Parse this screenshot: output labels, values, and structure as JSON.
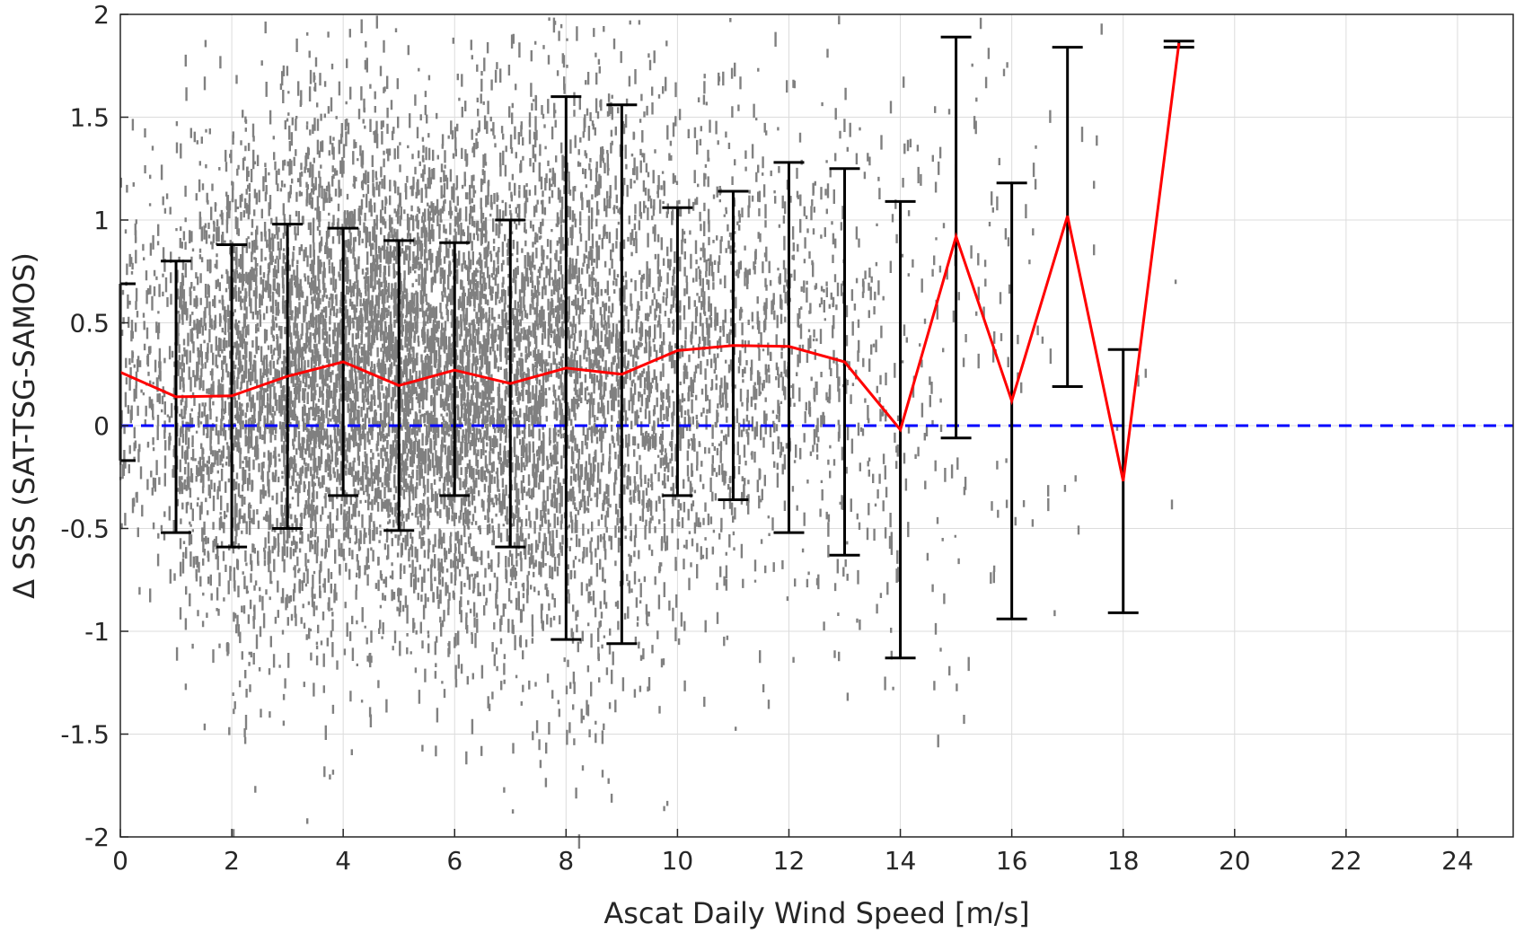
{
  "chart_data": {
    "type": "scatter",
    "xlabel": "Ascat Daily Wind Speed [m/s]",
    "ylabel": "Δ SSS (SAT-TSG-SAMOS)",
    "xlim": [
      0,
      25
    ],
    "ylim": [
      -2,
      2
    ],
    "x_ticks": [
      0,
      2,
      4,
      6,
      8,
      10,
      12,
      14,
      16,
      18,
      20,
      22,
      24
    ],
    "y_ticks": [
      -2,
      -1.5,
      -1,
      -0.5,
      0,
      0.5,
      1,
      1.5,
      2
    ],
    "x_tick_labels": [
      "0",
      "2",
      "4",
      "6",
      "8",
      "10",
      "12",
      "14",
      "16",
      "18",
      "20",
      "22",
      "24"
    ],
    "y_tick_labels": [
      "-2",
      "-1.5",
      "-1",
      "-0.5",
      "0",
      "0.5",
      "1",
      "1.5",
      "2"
    ],
    "grid": true,
    "colors": {
      "scatter": "#808080",
      "mean_line": "#ff0000",
      "zero_line": "#0000ff",
      "error_bars": "#000000"
    },
    "zero_line": 0,
    "mean_line": {
      "x": [
        0,
        1,
        2,
        3,
        4,
        5,
        6,
        7,
        8,
        9,
        10,
        11,
        12,
        13,
        14,
        15,
        16,
        17,
        18,
        19
      ],
      "y": [
        0.26,
        0.14,
        0.145,
        0.24,
        0.31,
        0.195,
        0.27,
        0.205,
        0.28,
        0.25,
        0.365,
        0.39,
        0.385,
        0.31,
        -0.02,
        0.92,
        0.12,
        1.02,
        -0.27,
        1.86
      ]
    },
    "error_bars": [
      {
        "x": 0,
        "low": -0.17,
        "high": 0.69
      },
      {
        "x": 1,
        "low": -0.52,
        "high": 0.8
      },
      {
        "x": 2,
        "low": -0.59,
        "high": 0.88
      },
      {
        "x": 3,
        "low": -0.5,
        "high": 0.98
      },
      {
        "x": 4,
        "low": -0.34,
        "high": 0.96
      },
      {
        "x": 5,
        "low": -0.51,
        "high": 0.9
      },
      {
        "x": 6,
        "low": -0.34,
        "high": 0.89
      },
      {
        "x": 7,
        "low": -0.59,
        "high": 1.0
      },
      {
        "x": 8,
        "low": -1.04,
        "high": 1.6
      },
      {
        "x": 9,
        "low": -1.06,
        "high": 1.56
      },
      {
        "x": 10,
        "low": -0.34,
        "high": 1.06
      },
      {
        "x": 11,
        "low": -0.36,
        "high": 1.14
      },
      {
        "x": 12,
        "low": -0.52,
        "high": 1.28
      },
      {
        "x": 13,
        "low": -0.63,
        "high": 1.25
      },
      {
        "x": 14,
        "low": -1.13,
        "high": 1.09
      },
      {
        "x": 15,
        "low": -0.06,
        "high": 1.89
      },
      {
        "x": 16,
        "low": -0.94,
        "high": 1.18
      },
      {
        "x": 17,
        "low": 0.19,
        "high": 1.84
      },
      {
        "x": 18,
        "low": -0.91,
        "high": 0.37
      },
      {
        "x": 19,
        "low": 1.84,
        "high": 1.87
      }
    ],
    "scatter_density": [
      {
        "x": 0.5,
        "mean": 0.3,
        "sd": 0.45,
        "n": 200
      },
      {
        "x": 1.5,
        "mean": 0.2,
        "sd": 0.6,
        "n": 550
      },
      {
        "x": 2.5,
        "mean": 0.2,
        "sd": 0.65,
        "n": 800
      },
      {
        "x": 3.5,
        "mean": 0.3,
        "sd": 0.65,
        "n": 1000
      },
      {
        "x": 4.5,
        "mean": 0.3,
        "sd": 0.6,
        "n": 1100
      },
      {
        "x": 5.5,
        "mean": 0.25,
        "sd": 0.6,
        "n": 1100
      },
      {
        "x": 6.5,
        "mean": 0.25,
        "sd": 0.65,
        "n": 1000
      },
      {
        "x": 7.5,
        "mean": 0.25,
        "sd": 0.7,
        "n": 900
      },
      {
        "x": 8.5,
        "mean": 0.25,
        "sd": 0.8,
        "n": 750
      },
      {
        "x": 9.5,
        "mean": 0.3,
        "sd": 0.7,
        "n": 550
      },
      {
        "x": 10.5,
        "mean": 0.35,
        "sd": 0.6,
        "n": 400
      },
      {
        "x": 11.5,
        "mean": 0.35,
        "sd": 0.6,
        "n": 280
      },
      {
        "x": 12.5,
        "mean": 0.35,
        "sd": 0.6,
        "n": 200
      },
      {
        "x": 13.5,
        "mean": 0.2,
        "sd": 0.65,
        "n": 120
      },
      {
        "x": 14.5,
        "mean": 0.4,
        "sd": 0.7,
        "n": 70
      },
      {
        "x": 15.5,
        "mean": 0.6,
        "sd": 0.8,
        "n": 50
      },
      {
        "x": 16.5,
        "mean": 0.4,
        "sd": 0.7,
        "n": 20
      },
      {
        "x": 17.5,
        "mean": 0.5,
        "sd": 0.8,
        "n": 10
      },
      {
        "x": 18.5,
        "mean": 0.3,
        "sd": 0.8,
        "n": 4
      }
    ]
  }
}
